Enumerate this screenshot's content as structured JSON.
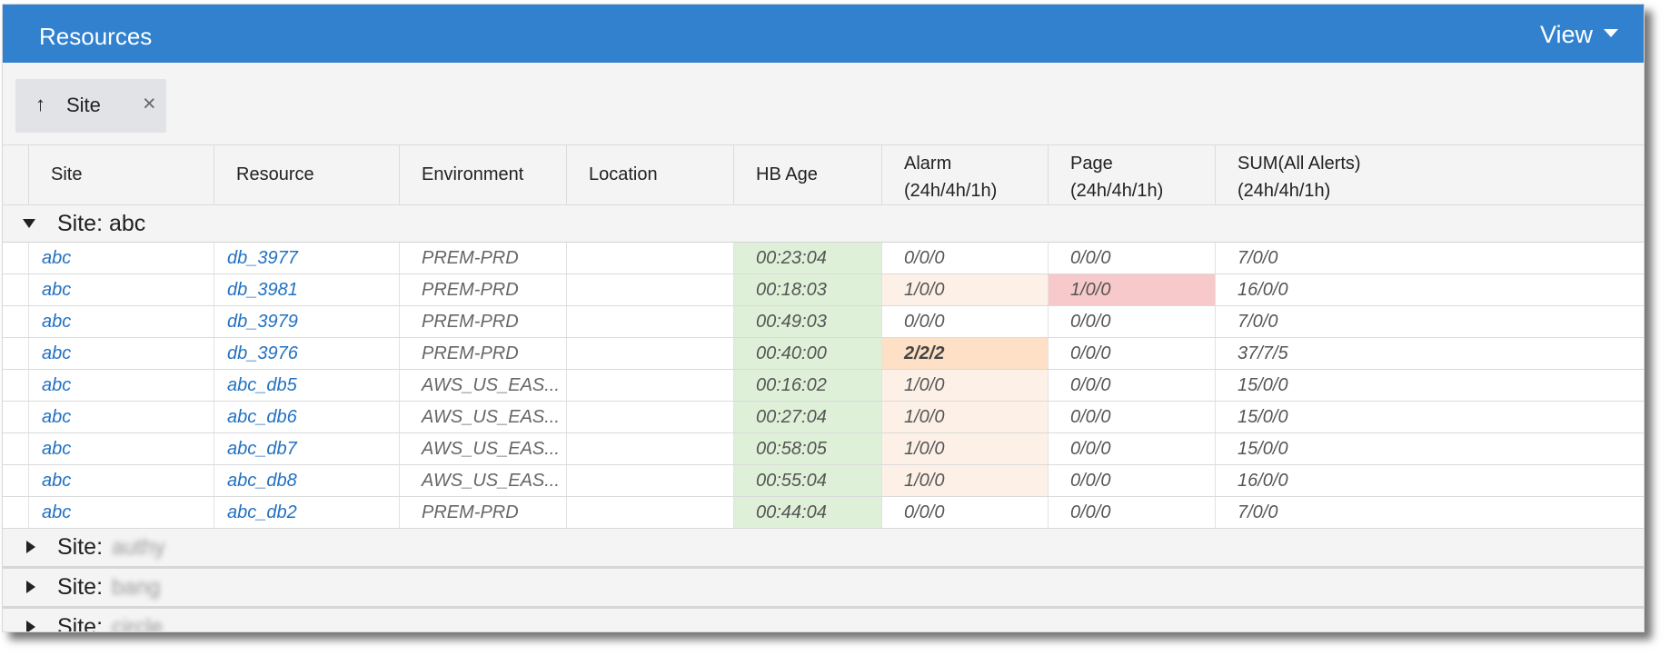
{
  "header": {
    "title": "Resources",
    "view_label": "View"
  },
  "group_chip": {
    "label": "Site",
    "arrow": "↑",
    "close": "×"
  },
  "columns": [
    {
      "key": "site",
      "label": "Site",
      "label2": ""
    },
    {
      "key": "resource",
      "label": "Resource",
      "label2": ""
    },
    {
      "key": "environment",
      "label": "Environment",
      "label2": ""
    },
    {
      "key": "location",
      "label": "Location",
      "label2": ""
    },
    {
      "key": "hb_age",
      "label": "HB Age",
      "label2": ""
    },
    {
      "key": "alarm",
      "label": "Alarm",
      "label2": "(24h/4h/1h)"
    },
    {
      "key": "page",
      "label": "Page",
      "label2": "(24h/4h/1h)"
    },
    {
      "key": "sum",
      "label": "SUM(All Alerts)",
      "label2": "(24h/4h/1h)"
    }
  ],
  "groups": [
    {
      "label": "Site: abc",
      "expanded": true,
      "rows": [
        {
          "site": "abc",
          "resource": "db_3977",
          "environment": "PREM-PRD",
          "location": "",
          "hb_age": "00:23:04",
          "alarm": "0/0/0",
          "page": "0/0/0",
          "sum": "7/0/0",
          "alarm_level": "none",
          "page_level": "none"
        },
        {
          "site": "abc",
          "resource": "db_3981",
          "environment": "PREM-PRD",
          "location": "",
          "hb_age": "00:18:03",
          "alarm": "1/0/0",
          "page": "1/0/0",
          "sum": "16/0/0",
          "alarm_level": "light",
          "page_level": "red"
        },
        {
          "site": "abc",
          "resource": "db_3979",
          "environment": "PREM-PRD",
          "location": "",
          "hb_age": "00:49:03",
          "alarm": "0/0/0",
          "page": "0/0/0",
          "sum": "7/0/0",
          "alarm_level": "none",
          "page_level": "none"
        },
        {
          "site": "abc",
          "resource": "db_3976",
          "environment": "PREM-PRD",
          "location": "",
          "hb_age": "00:40:00",
          "alarm": "2/2/2",
          "page": "0/0/0",
          "sum": "37/7/5",
          "alarm_level": "strong",
          "page_level": "none"
        },
        {
          "site": "abc",
          "resource": "abc_db5",
          "environment": "AWS_US_EAS...",
          "location": "",
          "hb_age": "00:16:02",
          "alarm": "1/0/0",
          "page": "0/0/0",
          "sum": "15/0/0",
          "alarm_level": "light",
          "page_level": "none"
        },
        {
          "site": "abc",
          "resource": "abc_db6",
          "environment": "AWS_US_EAS...",
          "location": "",
          "hb_age": "00:27:04",
          "alarm": "1/0/0",
          "page": "0/0/0",
          "sum": "15/0/0",
          "alarm_level": "light",
          "page_level": "none"
        },
        {
          "site": "abc",
          "resource": "abc_db7",
          "environment": "AWS_US_EAS...",
          "location": "",
          "hb_age": "00:58:05",
          "alarm": "1/0/0",
          "page": "0/0/0",
          "sum": "15/0/0",
          "alarm_level": "light",
          "page_level": "none"
        },
        {
          "site": "abc",
          "resource": "abc_db8",
          "environment": "AWS_US_EAS...",
          "location": "",
          "hb_age": "00:55:04",
          "alarm": "1/0/0",
          "page": "0/0/0",
          "sum": "16/0/0",
          "alarm_level": "light",
          "page_level": "none"
        },
        {
          "site": "abc",
          "resource": "abc_db2",
          "environment": "PREM-PRD",
          "location": "",
          "hb_age": "00:44:04",
          "alarm": "0/0/0",
          "page": "0/0/0",
          "sum": "7/0/0",
          "alarm_level": "none",
          "page_level": "none"
        }
      ]
    },
    {
      "label": "Site:",
      "blurred": "authy",
      "expanded": false,
      "rows": []
    },
    {
      "label": "Site:",
      "blurred": "bang",
      "expanded": false,
      "rows": []
    },
    {
      "label": "Site:",
      "blurred": "circle",
      "expanded": false,
      "rows": []
    }
  ],
  "colors": {
    "titlebar": "#3181cf",
    "link": "#2372c3",
    "hb_ok": "#dff0d8",
    "alarm_light": "#fdf1e7",
    "alarm_strong": "#fde0c6",
    "page_red": "#f7c9ca"
  }
}
